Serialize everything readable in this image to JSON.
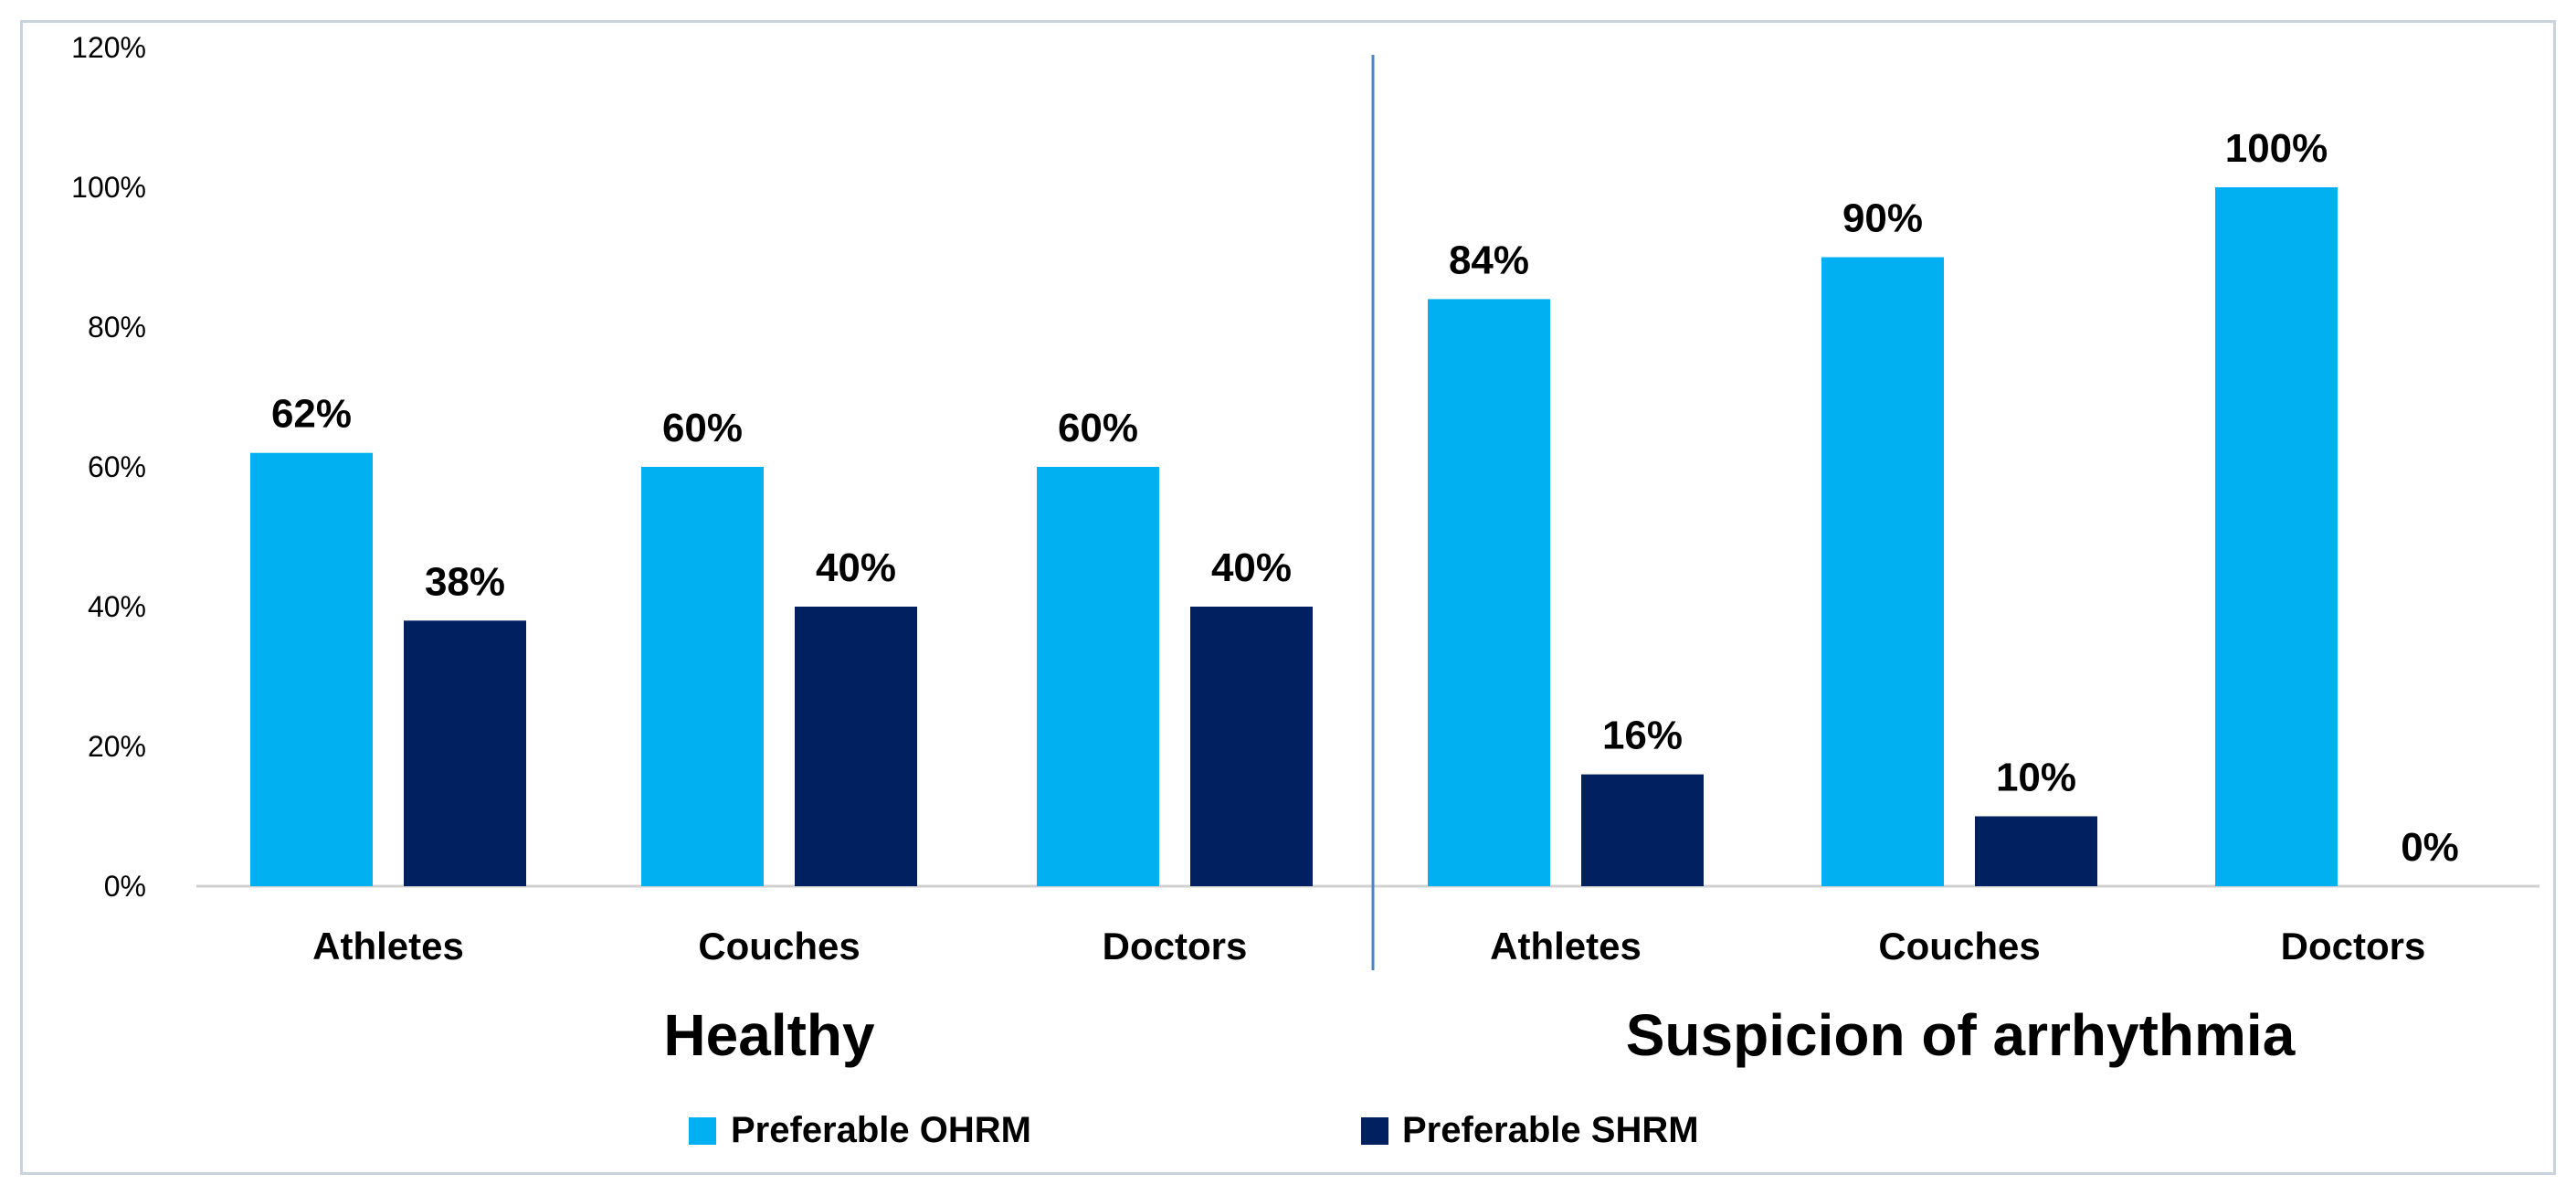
{
  "chart_data": {
    "type": "bar",
    "groups": [
      {
        "label": "Healthy",
        "categories": [
          "Athletes",
          "Couches",
          "Doctors"
        ]
      },
      {
        "label": "Suspicion of arrhythmia",
        "categories": [
          "Athletes",
          "Couches",
          "Doctors"
        ]
      }
    ],
    "categories": [
      "Athletes",
      "Couches",
      "Doctors",
      "Athletes",
      "Couches",
      "Doctors"
    ],
    "series": [
      {
        "name": "Preferable OHRM",
        "color": "#00b0f0",
        "values": [
          62,
          60,
          60,
          84,
          90,
          100
        ]
      },
      {
        "name": "Preferable SHRM",
        "color": "#002060",
        "values": [
          38,
          40,
          40,
          16,
          10,
          0
        ]
      }
    ],
    "data_labels": {
      "series_0": [
        "62%",
        "60%",
        "60%",
        "84%",
        "90%",
        "100%"
      ],
      "series_1": [
        "38%",
        "40%",
        "40%",
        "16%",
        "10%",
        "0%"
      ]
    },
    "yticks": [
      0,
      20,
      40,
      60,
      80,
      100,
      120
    ],
    "ytick_labels": [
      "0%",
      "20%",
      "40%",
      "60%",
      "80%",
      "100%",
      "120%"
    ],
    "ylim": [
      0,
      120
    ],
    "title": "",
    "xlabel": "",
    "ylabel": "",
    "grid": false,
    "legend_position": "bottom-center"
  }
}
